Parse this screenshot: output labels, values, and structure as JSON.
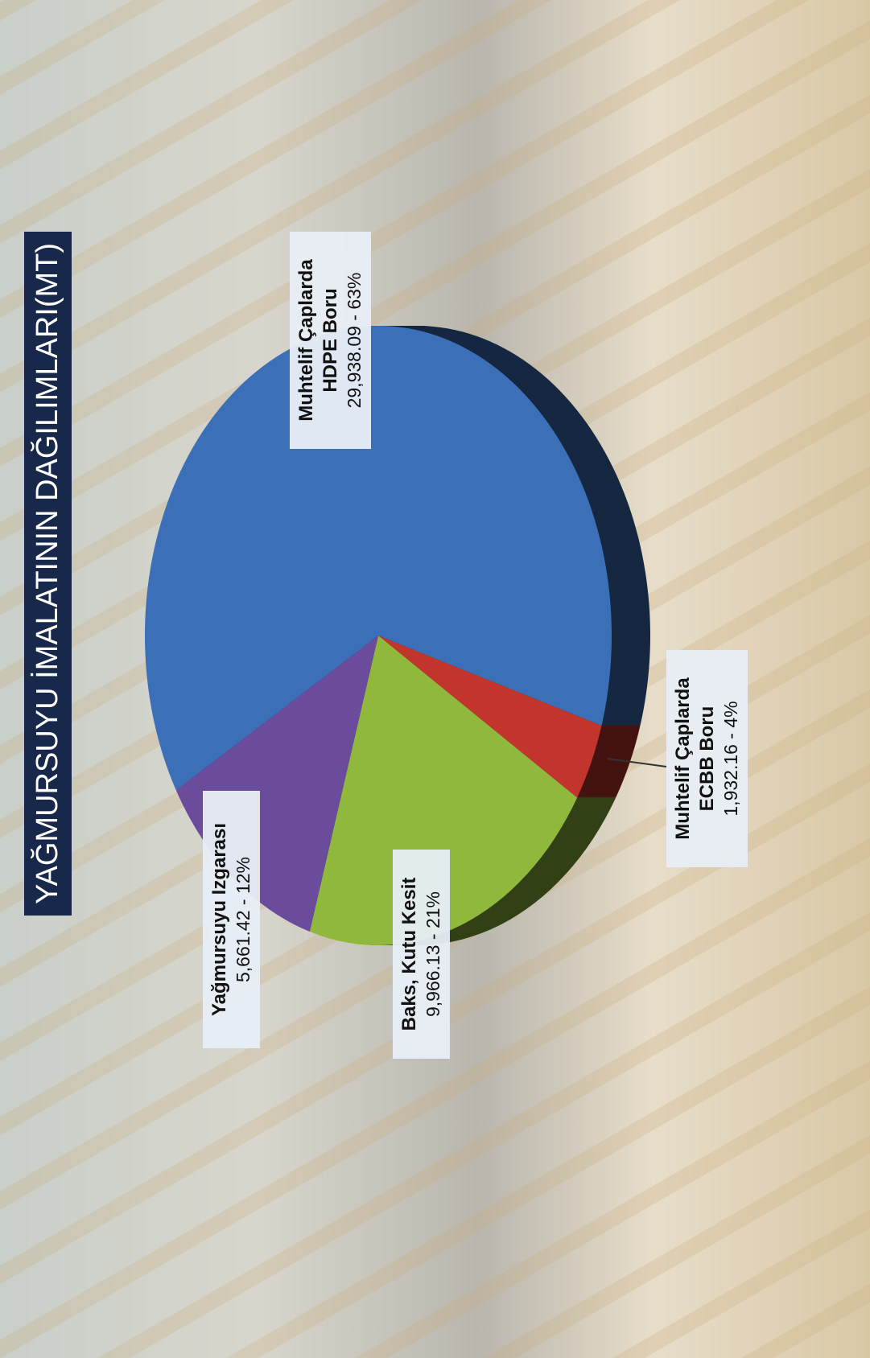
{
  "chart_data": {
    "type": "pie",
    "title": "YAĞMURSUYU İMALATININ DAĞILIMLARI(MT)",
    "categories": [
      "Muhtelif Çaplarda HDPE  Boru",
      "Muhtelif Çaplarda ECBB Boru",
      "Baks, Kutu Kesit",
      "Yağmursuyu Izgarası"
    ],
    "values": [
      29938.09,
      1932.16,
      9966.13,
      5661.42
    ],
    "value_labels": [
      "29,938.09 - 63%",
      "1,932.16 - 4%",
      "9,966.13 - 21%",
      "5,661.42 - 12%"
    ],
    "colors": [
      "#3b70b9",
      "#c2352d",
      "#8fb83c",
      "#6b4c9c"
    ]
  }
}
